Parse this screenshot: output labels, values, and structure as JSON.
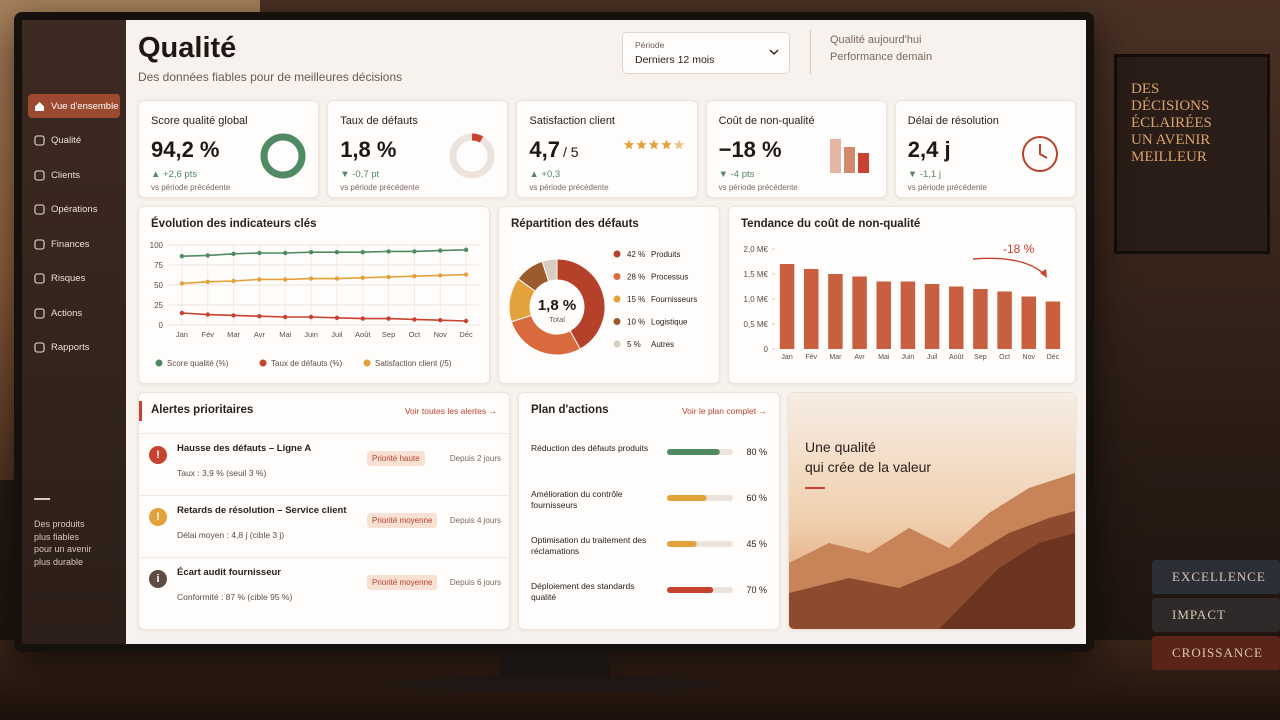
{
  "sidebar": {
    "items": [
      "Vue d'ensemble",
      "Qualité",
      "Clients",
      "Opérations",
      "Finances",
      "Risques",
      "Actions",
      "Rapports"
    ],
    "tagline": [
      "Des produits",
      "plus fiables",
      "pour un avenir",
      "plus durable"
    ]
  },
  "header": {
    "title": "Qualité",
    "subtitle": "Des données fiables pour de meilleures décisions",
    "period_label": "Période",
    "period_value": "Derniers 12 mois",
    "slogan": [
      "Qualité aujourd'hui",
      "Performance demain"
    ]
  },
  "kpis": [
    {
      "label": "Score qualité global",
      "value": "94,2 %",
      "delta": "▲ +2,6 pts",
      "note": "vs période précédente"
    },
    {
      "label": "Taux de défauts",
      "value": "1,8 %",
      "delta": "▼ -0,7 pt",
      "note": "vs période précédente"
    },
    {
      "label": "Satisfaction client",
      "value": "4,7",
      "unit": "/ 5",
      "delta": "▲ +0,3",
      "note": "vs période précédente"
    },
    {
      "label": "Coût de non-qualité",
      "value": "−18 %",
      "delta": "▼ -4 pts",
      "note": "vs période précédente"
    },
    {
      "label": "Délai de résolution",
      "value": "2,4 j",
      "delta": "▼ -1,1 j",
      "note": "vs période précédente"
    }
  ],
  "chart_data": [
    {
      "type": "line",
      "title": "Évolution des indicateurs clés",
      "categories": [
        "Jan",
        "Fév",
        "Mar",
        "Avr",
        "Mai",
        "Juin",
        "Juil",
        "Août",
        "Sep",
        "Oct",
        "Nov",
        "Déc"
      ],
      "ylim": [
        0,
        100
      ],
      "yticks": [
        0,
        25,
        50,
        75,
        100
      ],
      "grid": true,
      "series": [
        {
          "name": "Score qualité (%)",
          "color": "#4f8a63",
          "values": [
            86,
            87,
            89,
            90,
            90,
            91,
            91,
            91,
            92,
            92,
            93,
            94
          ]
        },
        {
          "name": "Taux de défauts (%)",
          "color": "#c8432f",
          "values": [
            15,
            13,
            12,
            11,
            10,
            10,
            9,
            8,
            8,
            7,
            6,
            5
          ]
        },
        {
          "name": "Satisfaction client (/5)",
          "color": "#e3a13a",
          "values": [
            52,
            54,
            55,
            57,
            57,
            58,
            58,
            59,
            60,
            61,
            62,
            63
          ]
        }
      ]
    },
    {
      "type": "pie",
      "title": "Répartition des défauts",
      "center_label": "1,8 %",
      "center_sublabel": "Total",
      "categories": [
        "Produits",
        "Processus",
        "Fournisseurs",
        "Logistique",
        "Autres"
      ],
      "values": [
        42,
        28,
        15,
        10,
        5
      ],
      "value_labels": [
        "42 %",
        "28 %",
        "15 %",
        "10 %",
        "5 %"
      ],
      "colors": [
        "#b5412b",
        "#d86a3e",
        "#e3a23c",
        "#9c5a2e",
        "#d9cdc2"
      ]
    },
    {
      "type": "bar",
      "title": "Tendance du coût de non-qualité",
      "annotation": "-18 %",
      "categories": [
        "Jan",
        "Fév",
        "Mar",
        "Avr",
        "Mai",
        "Juin",
        "Juil",
        "Août",
        "Sep",
        "Oct",
        "Nov",
        "Déc"
      ],
      "values": [
        1.7,
        1.6,
        1.5,
        1.45,
        1.35,
        1.35,
        1.3,
        1.25,
        1.2,
        1.15,
        1.05,
        0.95
      ],
      "color": "#c8603f",
      "ylim": [
        0,
        2.0
      ],
      "yticks": [
        0,
        {
          "value": 0.5,
          "label": "0,5 M€"
        },
        {
          "value": 1.0,
          "label": "1,0 M€"
        },
        {
          "value": 1.5,
          "label": "1,5 M€"
        },
        {
          "value": 2.0,
          "label": "2,0 M€"
        }
      ]
    }
  ],
  "alerts": {
    "title": "Alertes prioritaires",
    "link": "Voir toutes les alertes →",
    "items": [
      {
        "icon": "!",
        "title": "Hausse des défauts – Ligne A",
        "detail": "Taux : 3,9 %  (seuil 3 %)",
        "badge": "Priorité haute",
        "time": "Depuis 2 jours"
      },
      {
        "icon": "!",
        "title": "Retards de résolution – Service client",
        "detail": "Délai moyen : 4,8 j  (cible 3 j)",
        "badge": "Priorité moyenne",
        "time": "Depuis 4 jours"
      },
      {
        "icon": "i",
        "title": "Écart audit fournisseur",
        "detail": "Conformité : 87 %  (cible 95 %)",
        "badge": "Priorité moyenne",
        "time": "Depuis 6 jours"
      }
    ]
  },
  "plan": {
    "title": "Plan d'actions",
    "link": "Voir le plan complet →",
    "max": 100,
    "items": [
      {
        "label": "Réduction des défauts produits",
        "value": 80,
        "value_label": "80 %",
        "color": "#4f8a63"
      },
      {
        "label": "Amélioration du contrôle fournisseurs",
        "value": 60,
        "value_label": "60 %",
        "color": "#e3a13a"
      },
      {
        "label": "Optimisation du traitement des réclamations",
        "value": 45,
        "value_label": "45 %",
        "color": "#e3a13a"
      },
      {
        "label": "Déploiement des standards qualité",
        "value": 70,
        "value_label": "70 %",
        "color": "#c8432f"
      }
    ]
  },
  "promo": {
    "lines": [
      "Une qualité",
      "qui crée de la valeur"
    ]
  },
  "decor": {
    "poster": [
      "DES",
      "DÉCISIONS",
      "ÉCLAIRÉES",
      "UN AVENIR",
      "MEILLEUR"
    ],
    "books": [
      "EXCELLENCE",
      "IMPACT",
      "CROISSANCE"
    ]
  }
}
